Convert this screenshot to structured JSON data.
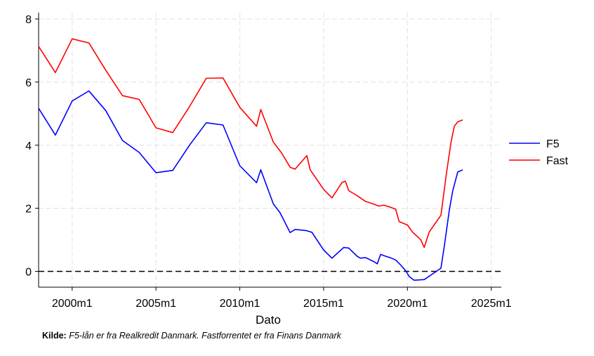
{
  "chart_data": {
    "type": "line",
    "xlabel": "Dato",
    "ylabel": "",
    "xlim": [
      1998,
      2025.6
    ],
    "ylim": [
      -0.5,
      8.2
    ],
    "xticks": [
      2000,
      2005,
      2010,
      2015,
      2020,
      2025
    ],
    "xtick_labels": [
      "2000m1",
      "2005m1",
      "2010m1",
      "2015m1",
      "2020m1",
      "2025m1"
    ],
    "yticks": [
      0,
      2,
      4,
      6,
      8
    ],
    "ytick_labels": [
      "0",
      "2",
      "4",
      "6",
      "8"
    ],
    "grid": true,
    "reference_line": 0,
    "legend_position": "right",
    "series": [
      {
        "name": "F5",
        "color": "#0000ff",
        "points": [
          [
            1998.0,
            5.17
          ],
          [
            1999.0,
            4.32
          ],
          [
            2000.0,
            5.4
          ],
          [
            2001.0,
            5.72
          ],
          [
            2002.0,
            5.1
          ],
          [
            2003.0,
            4.15
          ],
          [
            2004.0,
            3.77
          ],
          [
            2005.0,
            3.13
          ],
          [
            2006.0,
            3.2
          ],
          [
            2007.0,
            4.0
          ],
          [
            2008.0,
            4.71
          ],
          [
            2009.0,
            4.64
          ],
          [
            2010.0,
            3.35
          ],
          [
            2011.0,
            2.81
          ],
          [
            2011.25,
            3.22
          ],
          [
            2012.0,
            2.14
          ],
          [
            2012.4,
            1.86
          ],
          [
            2013.0,
            1.23
          ],
          [
            2013.3,
            1.33
          ],
          [
            2013.7,
            1.31
          ],
          [
            2014.0,
            1.29
          ],
          [
            2014.3,
            1.24
          ],
          [
            2015.0,
            0.68
          ],
          [
            2015.5,
            0.42
          ],
          [
            2016.2,
            0.76
          ],
          [
            2016.5,
            0.74
          ],
          [
            2017.0,
            0.48
          ],
          [
            2017.2,
            0.42
          ],
          [
            2017.5,
            0.44
          ],
          [
            2018.0,
            0.31
          ],
          [
            2018.2,
            0.24
          ],
          [
            2018.4,
            0.54
          ],
          [
            2018.7,
            0.48
          ],
          [
            2019.0,
            0.43
          ],
          [
            2019.3,
            0.36
          ],
          [
            2019.6,
            0.2
          ],
          [
            2019.9,
            0.02
          ],
          [
            2020.1,
            -0.16
          ],
          [
            2020.4,
            -0.28
          ],
          [
            2021.0,
            -0.26
          ],
          [
            2022.0,
            0.1
          ],
          [
            2022.2,
            0.8
          ],
          [
            2022.5,
            1.95
          ],
          [
            2022.7,
            2.55
          ],
          [
            2023.0,
            3.15
          ],
          [
            2023.3,
            3.22
          ]
        ]
      },
      {
        "name": "Fast",
        "color": "#ff0000",
        "points": [
          [
            1998.0,
            7.13
          ],
          [
            1999.0,
            6.3
          ],
          [
            2000.0,
            7.37
          ],
          [
            2001.0,
            7.24
          ],
          [
            2002.0,
            6.38
          ],
          [
            2003.0,
            5.57
          ],
          [
            2004.0,
            5.45
          ],
          [
            2005.0,
            4.55
          ],
          [
            2006.0,
            4.4
          ],
          [
            2007.0,
            5.22
          ],
          [
            2008.0,
            6.12
          ],
          [
            2009.0,
            6.13
          ],
          [
            2010.0,
            5.2
          ],
          [
            2011.0,
            4.6
          ],
          [
            2011.25,
            5.13
          ],
          [
            2012.0,
            4.1
          ],
          [
            2012.5,
            3.75
          ],
          [
            2013.0,
            3.3
          ],
          [
            2013.3,
            3.24
          ],
          [
            2014.0,
            3.67
          ],
          [
            2014.2,
            3.22
          ],
          [
            2015.0,
            2.6
          ],
          [
            2015.5,
            2.33
          ],
          [
            2016.1,
            2.82
          ],
          [
            2016.3,
            2.86
          ],
          [
            2016.5,
            2.56
          ],
          [
            2017.0,
            2.4
          ],
          [
            2017.5,
            2.22
          ],
          [
            2018.0,
            2.13
          ],
          [
            2018.3,
            2.07
          ],
          [
            2018.6,
            2.1
          ],
          [
            2019.0,
            2.03
          ],
          [
            2019.3,
            1.97
          ],
          [
            2019.5,
            1.58
          ],
          [
            2020.0,
            1.47
          ],
          [
            2020.3,
            1.25
          ],
          [
            2020.8,
            1.0
          ],
          [
            2021.0,
            0.76
          ],
          [
            2021.3,
            1.25
          ],
          [
            2022.0,
            1.78
          ],
          [
            2022.3,
            3.0
          ],
          [
            2022.6,
            4.1
          ],
          [
            2022.8,
            4.6
          ],
          [
            2023.0,
            4.74
          ],
          [
            2023.3,
            4.8
          ]
        ]
      }
    ]
  },
  "source_note": {
    "label": "Kilde:",
    "text": "F5-lån er fra Realkredit Danmark. Fastforrentet er fra Finans Danmark"
  }
}
